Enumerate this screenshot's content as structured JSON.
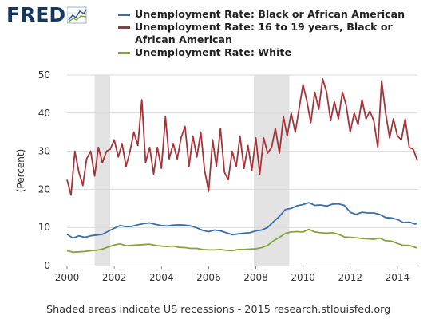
{
  "header": {
    "logo_text": "FRED",
    "logo_icon": "line-graph-icon"
  },
  "colors": {
    "black": "#3a6fab",
    "teen": "#a6333a",
    "white": "#84a43c",
    "recession": "#e3e3e3",
    "grid": "#d9d9d9",
    "logo": "#17385e"
  },
  "footer": {
    "note": "Shaded areas indicate US recessions - 2015 research.stlouisfed.org"
  },
  "chart_data": {
    "type": "line",
    "xlabel": "",
    "ylabel": "(Percent)",
    "xlim": [
      2000.0,
      2014.85
    ],
    "ylim": [
      0,
      50
    ],
    "grid": true,
    "legend_position": "top",
    "x_ticks": [
      "2000",
      "2002",
      "2004",
      "2006",
      "2008",
      "2010",
      "2012",
      "2014"
    ],
    "y_ticks": [
      "0",
      "10",
      "20",
      "30",
      "40",
      "50"
    ],
    "recessions": [
      [
        2001.17,
        2001.83
      ],
      [
        2007.92,
        2009.42
      ]
    ],
    "series": [
      {
        "name": "Unemployment Rate: Black or African American",
        "color": "#3a6fab",
        "x": [
          2000.0,
          2000.25,
          2000.5,
          2000.75,
          2001.0,
          2001.25,
          2001.5,
          2001.75,
          2002.0,
          2002.25,
          2002.5,
          2002.75,
          2003.0,
          2003.25,
          2003.5,
          2003.75,
          2004.0,
          2004.25,
          2004.5,
          2004.75,
          2005.0,
          2005.25,
          2005.5,
          2005.75,
          2006.0,
          2006.25,
          2006.5,
          2006.75,
          2007.0,
          2007.25,
          2007.5,
          2007.75,
          2008.0,
          2008.25,
          2008.5,
          2008.75,
          2009.0,
          2009.25,
          2009.5,
          2009.75,
          2010.0,
          2010.25,
          2010.5,
          2010.75,
          2011.0,
          2011.25,
          2011.5,
          2011.75,
          2012.0,
          2012.25,
          2012.5,
          2012.75,
          2013.0,
          2013.25,
          2013.5,
          2013.75,
          2014.0,
          2014.25,
          2014.5,
          2014.75,
          2014.85
        ],
        "values": [
          8.2,
          7.2,
          7.8,
          7.4,
          7.8,
          8.0,
          8.2,
          9.0,
          9.8,
          10.5,
          10.2,
          10.3,
          10.7,
          11.0,
          11.2,
          10.8,
          10.5,
          10.4,
          10.6,
          10.7,
          10.6,
          10.4,
          9.9,
          9.2,
          8.9,
          9.3,
          9.1,
          8.6,
          8.1,
          8.3,
          8.5,
          8.6,
          9.1,
          9.3,
          10.0,
          11.5,
          12.9,
          14.7,
          15.0,
          15.7,
          16.0,
          16.5,
          15.8,
          15.9,
          15.6,
          16.1,
          16.2,
          15.8,
          14.0,
          13.4,
          14.0,
          13.8,
          13.8,
          13.4,
          12.6,
          12.5,
          12.1,
          11.3,
          11.4,
          10.9,
          11.0
        ]
      },
      {
        "name": "Unemployment Rate: 16 to 19 years, Black or African American",
        "color": "#a6333a",
        "x": [
          2000.0,
          2000.17,
          2000.33,
          2000.5,
          2000.67,
          2000.83,
          2001.0,
          2001.17,
          2001.33,
          2001.5,
          2001.67,
          2001.83,
          2002.0,
          2002.17,
          2002.33,
          2002.5,
          2002.67,
          2002.83,
          2003.0,
          2003.17,
          2003.33,
          2003.5,
          2003.67,
          2003.83,
          2004.0,
          2004.17,
          2004.33,
          2004.5,
          2004.67,
          2004.83,
          2005.0,
          2005.17,
          2005.33,
          2005.5,
          2005.67,
          2005.83,
          2006.0,
          2006.17,
          2006.33,
          2006.5,
          2006.67,
          2006.83,
          2007.0,
          2007.17,
          2007.33,
          2007.5,
          2007.67,
          2007.83,
          2008.0,
          2008.17,
          2008.33,
          2008.5,
          2008.67,
          2008.83,
          2009.0,
          2009.17,
          2009.33,
          2009.5,
          2009.67,
          2009.83,
          2010.0,
          2010.17,
          2010.33,
          2010.5,
          2010.67,
          2010.83,
          2011.0,
          2011.17,
          2011.33,
          2011.5,
          2011.67,
          2011.83,
          2012.0,
          2012.17,
          2012.33,
          2012.5,
          2012.67,
          2012.83,
          2013.0,
          2013.17,
          2013.33,
          2013.5,
          2013.67,
          2013.83,
          2014.0,
          2014.17,
          2014.33,
          2014.5,
          2014.67,
          2014.85
        ],
        "values": [
          22.5,
          18.5,
          30.0,
          24.5,
          21.0,
          28.0,
          30.0,
          23.5,
          31.0,
          27.0,
          30.0,
          30.5,
          33.0,
          28.5,
          32.0,
          26.0,
          30.0,
          35.0,
          31.5,
          43.5,
          27.0,
          31.0,
          24.0,
          31.0,
          25.5,
          39.0,
          28.0,
          32.0,
          28.0,
          33.5,
          36.5,
          26.0,
          34.0,
          28.5,
          35.0,
          25.0,
          19.5,
          33.0,
          26.0,
          36.0,
          24.5,
          22.5,
          30.0,
          26.0,
          34.0,
          25.5,
          31.5,
          25.0,
          33.5,
          24.0,
          33.5,
          29.5,
          31.0,
          36.0,
          29.5,
          39.0,
          34.0,
          40.0,
          35.0,
          41.0,
          47.5,
          43.0,
          37.5,
          45.5,
          41.0,
          49.0,
          45.5,
          38.0,
          43.0,
          38.5,
          45.5,
          42.0,
          35.0,
          40.0,
          37.0,
          43.5,
          38.5,
          40.5,
          38.0,
          31.0,
          48.5,
          40.0,
          33.5,
          38.5,
          34.0,
          33.0,
          38.5,
          31.0,
          30.5,
          27.5
        ]
      },
      {
        "name": "Unemployment Rate: White",
        "color": "#84a43c",
        "x": [
          2000.0,
          2000.25,
          2000.5,
          2000.75,
          2001.0,
          2001.25,
          2001.5,
          2001.75,
          2002.0,
          2002.25,
          2002.5,
          2002.75,
          2003.0,
          2003.25,
          2003.5,
          2003.75,
          2004.0,
          2004.25,
          2004.5,
          2004.75,
          2005.0,
          2005.25,
          2005.5,
          2005.75,
          2006.0,
          2006.25,
          2006.5,
          2006.75,
          2007.0,
          2007.25,
          2007.5,
          2007.75,
          2008.0,
          2008.25,
          2008.5,
          2008.75,
          2009.0,
          2009.25,
          2009.5,
          2009.75,
          2010.0,
          2010.25,
          2010.5,
          2010.75,
          2011.0,
          2011.25,
          2011.5,
          2011.75,
          2012.0,
          2012.25,
          2012.5,
          2012.75,
          2013.0,
          2013.25,
          2013.5,
          2013.75,
          2014.0,
          2014.25,
          2014.5,
          2014.75,
          2014.85
        ],
        "values": [
          3.9,
          3.5,
          3.6,
          3.7,
          3.9,
          4.0,
          4.3,
          4.9,
          5.4,
          5.7,
          5.2,
          5.3,
          5.4,
          5.5,
          5.6,
          5.3,
          5.1,
          5.0,
          5.1,
          4.8,
          4.7,
          4.5,
          4.5,
          4.2,
          4.1,
          4.1,
          4.2,
          4.0,
          3.9,
          4.2,
          4.2,
          4.3,
          4.4,
          4.7,
          5.3,
          6.5,
          7.4,
          8.4,
          8.8,
          8.9,
          8.8,
          9.5,
          8.8,
          8.6,
          8.5,
          8.6,
          8.2,
          7.5,
          7.4,
          7.3,
          7.1,
          7.0,
          6.9,
          7.2,
          6.5,
          6.4,
          5.8,
          5.3,
          5.3,
          4.8,
          4.6
        ]
      }
    ]
  }
}
